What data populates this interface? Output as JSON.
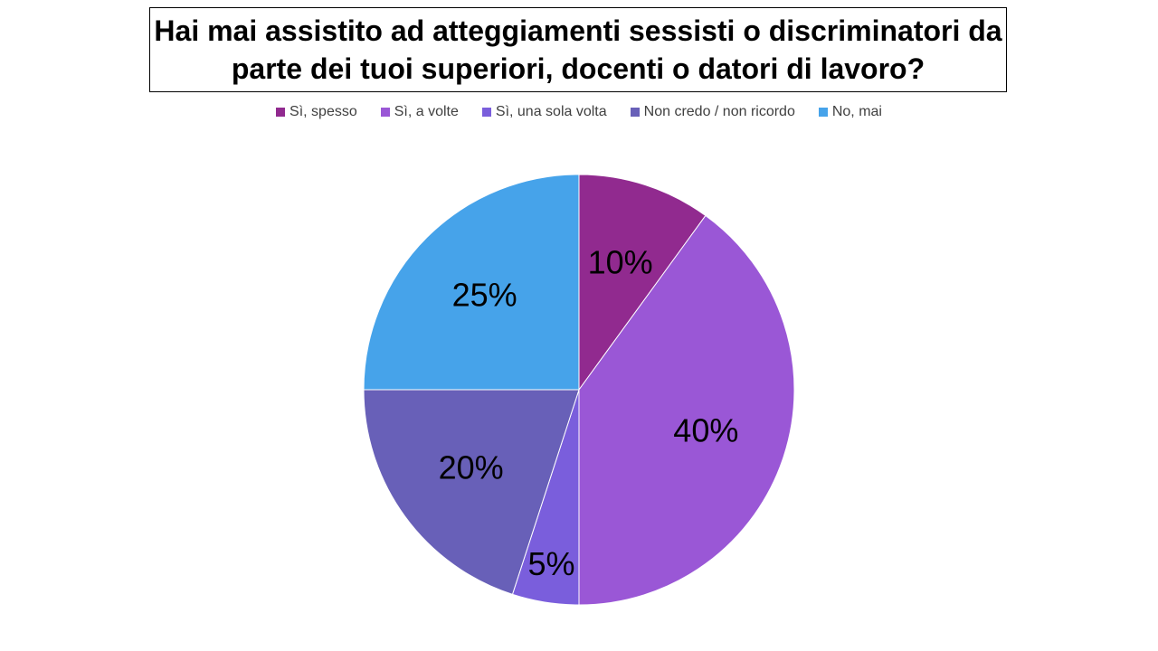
{
  "chart_data": {
    "type": "pie",
    "title": "Hai mai assistito ad atteggiamenti sessisti o discriminatori da parte dei tuoi superiori, docenti o datori di lavoro?",
    "legend_position": "top",
    "categories": [
      "Sì, spesso",
      "Sì, a volte",
      "Sì, una sola volta",
      "Non credo / non ricordo",
      "No, mai"
    ],
    "values": [
      10,
      40,
      5,
      20,
      25
    ],
    "labels": [
      "10%",
      "40%",
      "5%",
      "20%",
      "25%"
    ],
    "colors": [
      "#912A8F",
      "#9A57D6",
      "#7A5EDC",
      "#6860B8",
      "#46A3EA"
    ]
  }
}
